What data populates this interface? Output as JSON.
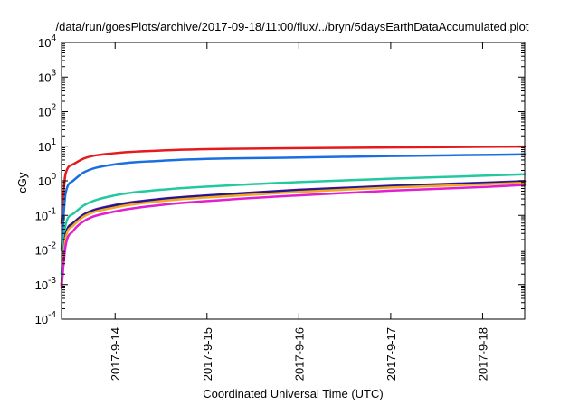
{
  "chart_data": {
    "type": "line",
    "title": "/data/run/goesPlots/archive/2017-09-18/11:00/flux/../bryn/5daysEarthDataAccumulated.plot",
    "xlabel": "Coordinated Universal Time (UTC)",
    "ylabel": "cGy",
    "xlim": [
      "2017-09-13 10:00",
      "2017-09-18 11:00"
    ],
    "ylim": [
      0.0001,
      10000
    ],
    "yscale": "log",
    "grid": false,
    "legend": "none",
    "x_ticks": [
      "2017-9-14",
      "2017-9-15",
      "2017-9-16",
      "2017-9-17",
      "2017-9-18"
    ],
    "y_ticks": [
      {
        "mantissa": "10",
        "exp": "-4"
      },
      {
        "mantissa": "10",
        "exp": "-3"
      },
      {
        "mantissa": "10",
        "exp": "-2"
      },
      {
        "mantissa": "10",
        "exp": "-1"
      },
      {
        "mantissa": "10",
        "exp": "0"
      },
      {
        "mantissa": "10",
        "exp": "1"
      },
      {
        "mantissa": "10",
        "exp": "2"
      },
      {
        "mantissa": "10",
        "exp": "3"
      },
      {
        "mantissa": "10",
        "exp": "4"
      }
    ],
    "series": [
      {
        "color": "#e41a1c",
        "x": [
          "2017-09-13 10:00",
          "2017-09-13 11:00",
          "2017-09-13 13:00",
          "2017-09-13 16:00",
          "2017-09-14 00:00",
          "2017-09-14 12:00",
          "2017-09-15 00:00",
          "2017-09-16 00:00",
          "2017-09-17 00:00",
          "2017-09-18 00:00",
          "2017-09-18 11:00"
        ],
        "values": [
          0.06,
          1.5,
          3.0,
          4.5,
          6.3,
          7.5,
          8.2,
          8.8,
          9.2,
          9.6,
          9.8
        ]
      },
      {
        "color": "#1a6fe0",
        "x": [
          "2017-09-13 10:00",
          "2017-09-13 11:00",
          "2017-09-13 13:00",
          "2017-09-13 16:00",
          "2017-09-14 00:00",
          "2017-09-14 12:00",
          "2017-09-15 00:00",
          "2017-09-16 00:00",
          "2017-09-17 00:00",
          "2017-09-18 00:00",
          "2017-09-18 11:00"
        ],
        "values": [
          0.01,
          0.4,
          1.0,
          1.8,
          3.0,
          3.8,
          4.3,
          4.7,
          5.2,
          5.6,
          5.8
        ]
      },
      {
        "color": "#22c9a0",
        "x": [
          "2017-09-13 10:00",
          "2017-09-13 11:00",
          "2017-09-13 13:00",
          "2017-09-13 16:00",
          "2017-09-14 00:00",
          "2017-09-14 12:00",
          "2017-09-15 00:00",
          "2017-09-16 00:00",
          "2017-09-17 00:00",
          "2017-09-18 00:00",
          "2017-09-18 11:00"
        ],
        "values": [
          0.002,
          0.05,
          0.11,
          0.2,
          0.38,
          0.55,
          0.68,
          0.92,
          1.15,
          1.4,
          1.55
        ]
      },
      {
        "color": "#6a0dad",
        "x": [
          "2017-09-13 10:00",
          "2017-09-13 11:00",
          "2017-09-13 13:00",
          "2017-09-13 16:00",
          "2017-09-14 00:00",
          "2017-09-14 12:00",
          "2017-09-15 00:00",
          "2017-09-16 00:00",
          "2017-09-17 00:00",
          "2017-09-18 00:00",
          "2017-09-18 11:00"
        ],
        "values": [
          0.001,
          0.025,
          0.06,
          0.11,
          0.2,
          0.3,
          0.38,
          0.55,
          0.72,
          0.88,
          0.98
        ]
      },
      {
        "color": "#1a1a8c",
        "x": [
          "2017-09-13 10:00",
          "2017-09-13 11:00",
          "2017-09-13 13:00",
          "2017-09-13 16:00",
          "2017-09-14 00:00",
          "2017-09-14 12:00",
          "2017-09-15 00:00",
          "2017-09-16 00:00",
          "2017-09-17 00:00",
          "2017-09-18 00:00",
          "2017-09-18 11:00"
        ],
        "values": [
          0.001,
          0.024,
          0.058,
          0.105,
          0.19,
          0.29,
          0.37,
          0.53,
          0.7,
          0.86,
          0.95
        ]
      },
      {
        "color": "#f5a623",
        "x": [
          "2017-09-13 10:00",
          "2017-09-13 11:00",
          "2017-09-13 13:00",
          "2017-09-13 16:00",
          "2017-09-14 00:00",
          "2017-09-14 12:00",
          "2017-09-15 00:00",
          "2017-09-16 00:00",
          "2017-09-17 00:00",
          "2017-09-18 00:00",
          "2017-09-18 11:00"
        ],
        "values": [
          0.001,
          0.02,
          0.05,
          0.095,
          0.17,
          0.26,
          0.33,
          0.48,
          0.64,
          0.79,
          0.88
        ]
      },
      {
        "color": "#e020d0",
        "x": [
          "2017-09-13 10:00",
          "2017-09-13 11:00",
          "2017-09-13 13:00",
          "2017-09-13 16:00",
          "2017-09-14 00:00",
          "2017-09-14 12:00",
          "2017-09-15 00:00",
          "2017-09-16 00:00",
          "2017-09-17 00:00",
          "2017-09-18 00:00",
          "2017-09-18 11:00"
        ],
        "values": [
          0.0008,
          0.012,
          0.035,
          0.07,
          0.13,
          0.2,
          0.26,
          0.38,
          0.52,
          0.66,
          0.76
        ]
      }
    ]
  }
}
